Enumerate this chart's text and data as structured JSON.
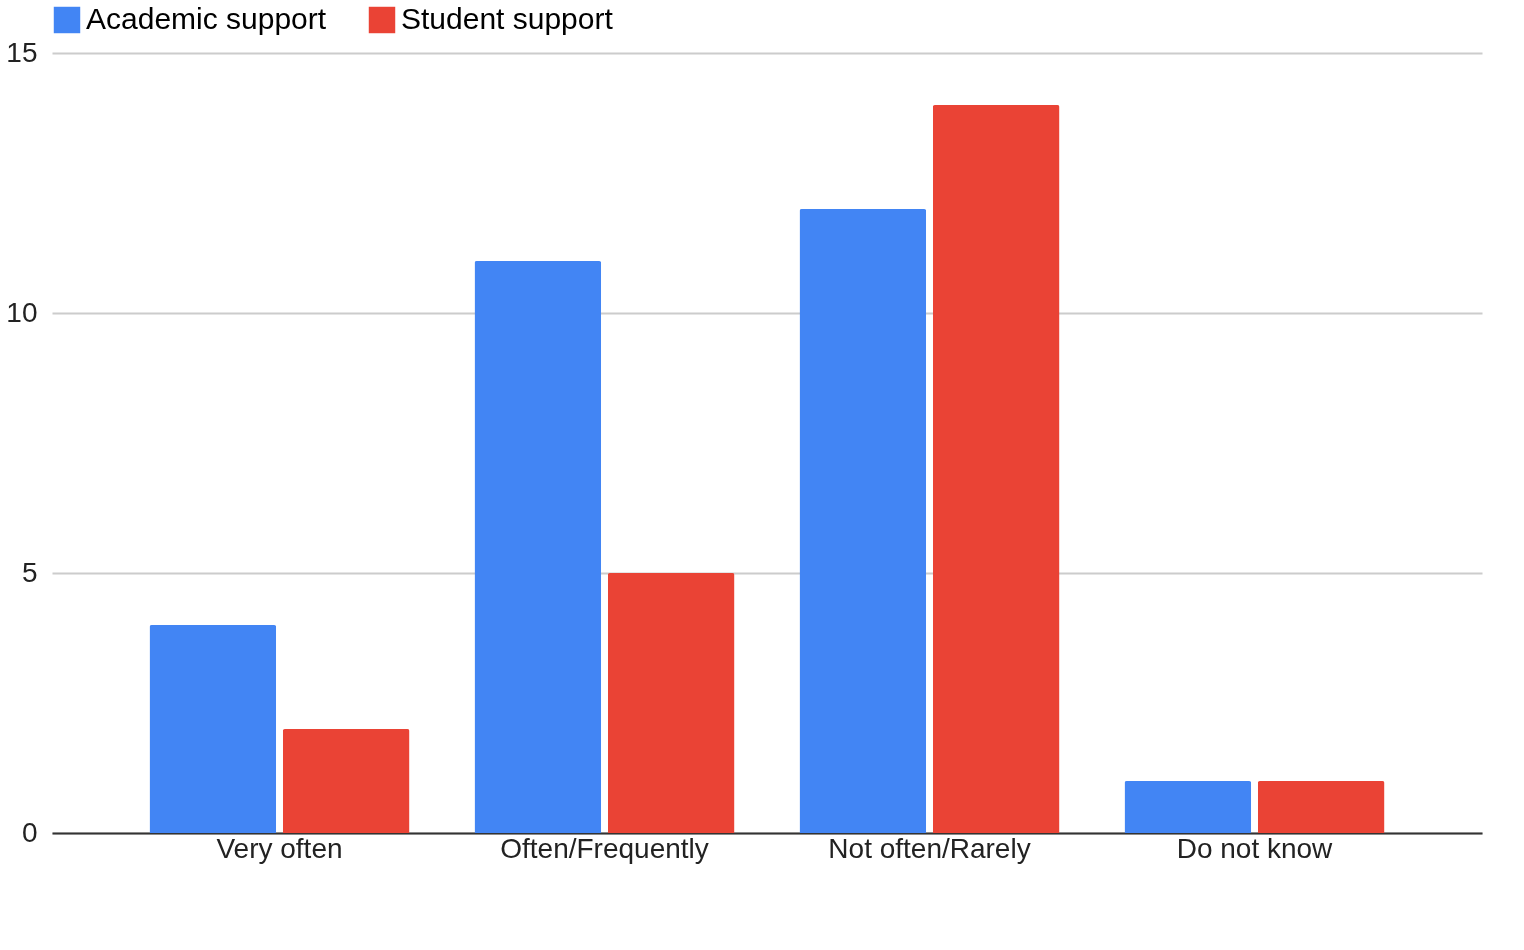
{
  "chart_data": {
    "type": "bar",
    "categories": [
      "Very often",
      "Often/Frequently",
      "Not often/Rarely",
      "Do not know"
    ],
    "series": [
      {
        "name": "Academic support",
        "color": "#4285f4",
        "values": [
          4,
          11,
          12,
          1
        ]
      },
      {
        "name": "Student support",
        "color": "#ea4335",
        "values": [
          2,
          5,
          14,
          1
        ]
      }
    ],
    "ylim": [
      0,
      15
    ],
    "yticks": [
      0,
      5,
      10,
      15
    ],
    "grid": "y",
    "legend": "top"
  }
}
